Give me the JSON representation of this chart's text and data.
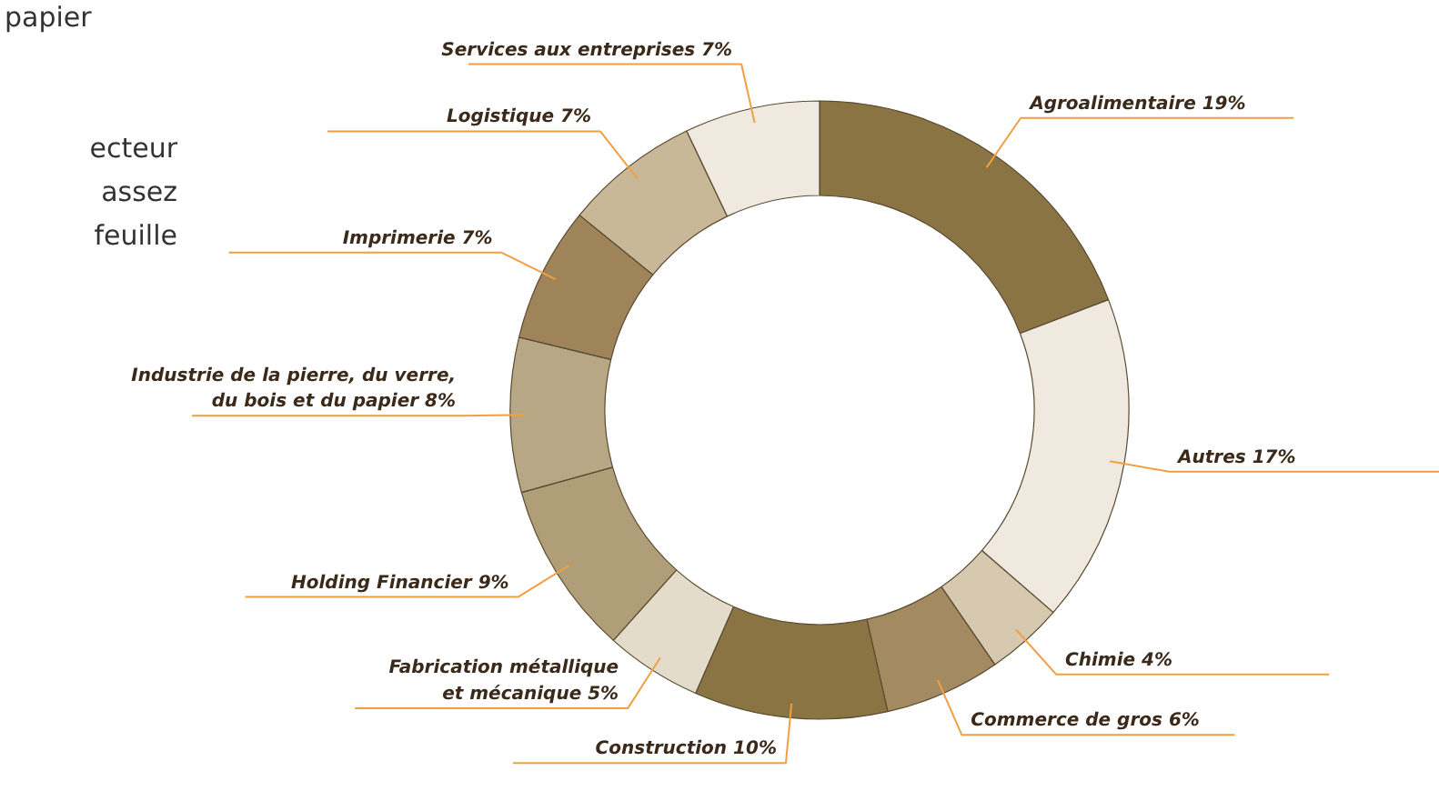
{
  "chart_data": {
    "type": "donut",
    "categories": [
      "Agroalimentaire",
      "Autres",
      "Chimie",
      "Commerce de gros",
      "Construction",
      "Fabrication métallique\net mécanique",
      "Holding Financier",
      "Industrie de la pierre, du verre,\ndu bois et du papier",
      "Imprimerie",
      "Logistique",
      "Services aux entreprises"
    ],
    "values": [
      19,
      17,
      4,
      6,
      10,
      5,
      9,
      8,
      7,
      7,
      7
    ],
    "value_labels": [
      "19%",
      "17%",
      "4%",
      "6%",
      "10%",
      "5%",
      "9%",
      "8%",
      "7%",
      "7%",
      "7%"
    ],
    "colors": [
      "#8b7444",
      "#efe9e0",
      "#d6c9b0",
      "#a48a60",
      "#8b7444",
      "#e3dccb",
      "#b09e78",
      "#b8a784",
      "#9e8458",
      "#c8b898",
      "#efe9e0"
    ],
    "annotations": [
      "papier",
      "ecteur",
      "assez",
      "feuille"
    ]
  }
}
